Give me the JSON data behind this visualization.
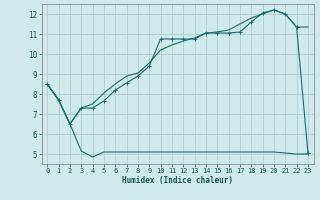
{
  "xlabel": "Humidex (Indice chaleur)",
  "bg_color": "#ceeaea",
  "grid_color": "#b0cccc",
  "line_color": "#1a6b6b",
  "xlim": [
    -0.5,
    23.5
  ],
  "ylim": [
    4.5,
    12.5
  ],
  "xticks": [
    0,
    1,
    2,
    3,
    4,
    5,
    6,
    7,
    8,
    9,
    10,
    11,
    12,
    13,
    14,
    15,
    16,
    17,
    18,
    19,
    20,
    21,
    22,
    23
  ],
  "yticks": [
    5,
    6,
    7,
    8,
    9,
    10,
    11,
    12
  ],
  "series1_x": [
    0,
    1,
    2,
    3,
    4,
    5,
    6,
    7,
    8,
    9,
    10,
    11,
    12,
    13,
    14,
    15,
    16,
    17,
    18,
    19,
    20,
    21,
    22,
    23
  ],
  "series1_y": [
    8.5,
    7.7,
    6.5,
    5.15,
    4.85,
    5.1,
    5.1,
    5.1,
    5.1,
    5.1,
    5.1,
    5.1,
    5.1,
    5.1,
    5.1,
    5.1,
    5.1,
    5.1,
    5.1,
    5.1,
    5.1,
    5.05,
    5.0,
    5.0
  ],
  "series2_x": [
    0,
    1,
    2,
    3,
    4,
    5,
    6,
    7,
    8,
    9,
    10,
    11,
    12,
    13,
    14,
    15,
    16,
    17,
    18,
    19,
    20,
    21,
    22,
    23
  ],
  "series2_y": [
    8.5,
    7.7,
    6.5,
    7.3,
    7.3,
    7.65,
    8.2,
    8.55,
    8.9,
    9.4,
    10.75,
    10.75,
    10.75,
    10.75,
    11.05,
    11.05,
    11.05,
    11.1,
    11.6,
    12.05,
    12.2,
    12.0,
    11.35,
    5.05
  ],
  "series3_x": [
    0,
    1,
    2,
    3,
    4,
    5,
    6,
    7,
    8,
    9,
    10,
    11,
    12,
    13,
    14,
    15,
    16,
    17,
    18,
    19,
    20,
    21,
    22,
    23
  ],
  "series3_y": [
    8.5,
    7.7,
    6.5,
    7.3,
    7.5,
    8.05,
    8.5,
    8.9,
    9.05,
    9.55,
    10.2,
    10.45,
    10.65,
    10.8,
    11.05,
    11.1,
    11.2,
    11.5,
    11.8,
    12.0,
    12.2,
    12.0,
    11.35,
    11.35
  ]
}
